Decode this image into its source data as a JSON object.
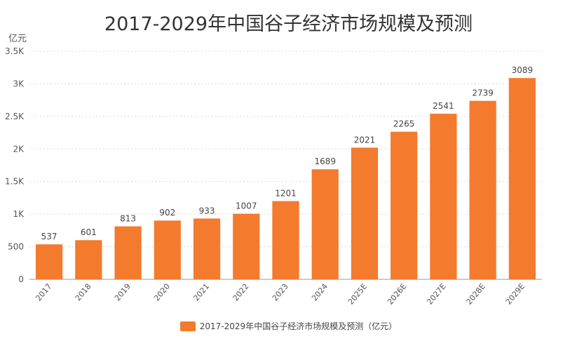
{
  "chart_data": {
    "type": "bar",
    "title": "2017-2029年中国谷子经济市场规模及预测",
    "unit_label": "亿元",
    "categories": [
      "2017",
      "2018",
      "2019",
      "2020",
      "2021",
      "2022",
      "2023",
      "2024",
      "2025E",
      "2026E",
      "2027E",
      "2028E",
      "2029E"
    ],
    "series": [
      {
        "name": "2017-2029年中国谷子经济市场规模及预测（亿元）",
        "values": [
          537,
          601,
          813,
          902,
          933,
          1007,
          1201,
          1689,
          2021,
          2265,
          2541,
          2739,
          3089
        ],
        "color": "#f47a2e"
      }
    ],
    "ylim": [
      0,
      3500
    ],
    "y_ticks": [
      0,
      500,
      1000,
      1500,
      2000,
      2500,
      3000,
      3500
    ],
    "y_tick_labels": [
      "0",
      "500",
      "1K",
      "1.5K",
      "2K",
      "2.5K",
      "3K",
      "3.5K"
    ],
    "grid": true,
    "data_labels": true,
    "legend_position": "bottom"
  }
}
